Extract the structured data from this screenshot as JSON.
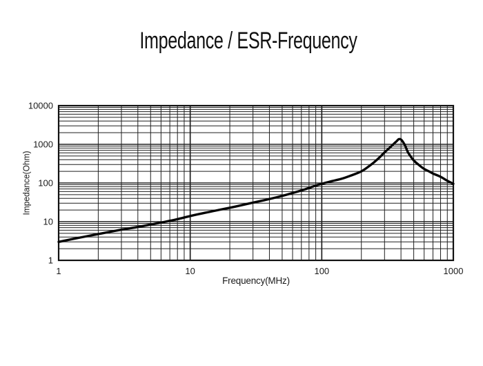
{
  "figure": {
    "background": "#ffffff"
  },
  "chart_data": {
    "type": "line",
    "title": "Impedance / ESR-Frequency",
    "xlabel": "Frequency(MHz)",
    "ylabel": "Impedance(Ohm)",
    "x_scale": "log",
    "y_scale": "log",
    "xlim": [
      1,
      1000
    ],
    "ylim": [
      1,
      10000
    ],
    "x_ticks": [
      "1",
      "10",
      "100",
      "1000"
    ],
    "y_ticks": [
      "1",
      "10",
      "100",
      "1000",
      "10000"
    ],
    "grid": "major and minor log gridlines on both axes",
    "legend": "none",
    "curve_color": "#050505",
    "grid_color": "#1f1f1f",
    "frame_color": "#111111",
    "series": [
      {
        "name": "Impedance",
        "units": {
          "x": "MHz",
          "y": "Ohm"
        },
        "peak": {
          "frequency_mhz": 385,
          "impedance_ohm": 1360
        },
        "points": [
          [
            1,
            3.0
          ],
          [
            1.3,
            3.6
          ],
          [
            1.7,
            4.3
          ],
          [
            2.2,
            5.1
          ],
          [
            3,
            6.2
          ],
          [
            4,
            7.3
          ],
          [
            5,
            8.4
          ],
          [
            6.5,
            10
          ],
          [
            8,
            11.6
          ],
          [
            10,
            14
          ],
          [
            13,
            17
          ],
          [
            17,
            20.5
          ],
          [
            22,
            24.5
          ],
          [
            28,
            29.5
          ],
          [
            36,
            35.5
          ],
          [
            47,
            44
          ],
          [
            60,
            55
          ],
          [
            75,
            69
          ],
          [
            90,
            86
          ],
          [
            105,
            100
          ],
          [
            120,
            112
          ],
          [
            145,
            132
          ],
          [
            170,
            160
          ],
          [
            200,
            200
          ],
          [
            225,
            262
          ],
          [
            250,
            345
          ],
          [
            275,
            460
          ],
          [
            300,
            620
          ],
          [
            325,
            790
          ],
          [
            350,
            1010
          ],
          [
            370,
            1200
          ],
          [
            385,
            1360
          ],
          [
            400,
            1330
          ],
          [
            415,
            1140
          ],
          [
            430,
            930
          ],
          [
            450,
            640
          ],
          [
            470,
            505
          ],
          [
            500,
            383
          ],
          [
            540,
            303
          ],
          [
            600,
            231
          ],
          [
            660,
            196
          ],
          [
            700,
            176
          ],
          [
            800,
            145
          ],
          [
            900,
            114
          ],
          [
            1000,
            95
          ]
        ]
      }
    ]
  }
}
